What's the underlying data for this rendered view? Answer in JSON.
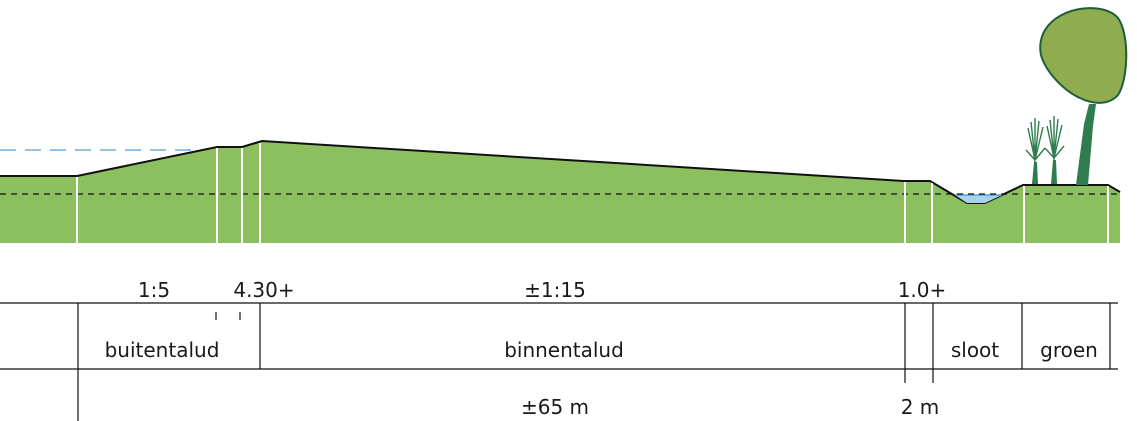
{
  "colors": {
    "ground": "#8cbf5e",
    "water": "#a7d3ec",
    "water_line": "#4f9fd6",
    "tree_crown": "#8fad4f",
    "tree_trunk": "#2f7d4f",
    "reed": "#2f7d4f",
    "line": "#111111"
  },
  "labels": {
    "slope_outer": "1:5",
    "crest_height": "4.30+",
    "slope_inner": "±1:15",
    "berm_height": "1.0+"
  },
  "zones": {
    "outer_slope": "buitentalud",
    "inner_slope": "binnentalud",
    "ditch": "sloot",
    "green": "groen"
  },
  "dimensions": {
    "total_width": "±65 m",
    "berm_width": "2 m"
  },
  "icons": [
    "tree-icon",
    "reed-icon"
  ]
}
